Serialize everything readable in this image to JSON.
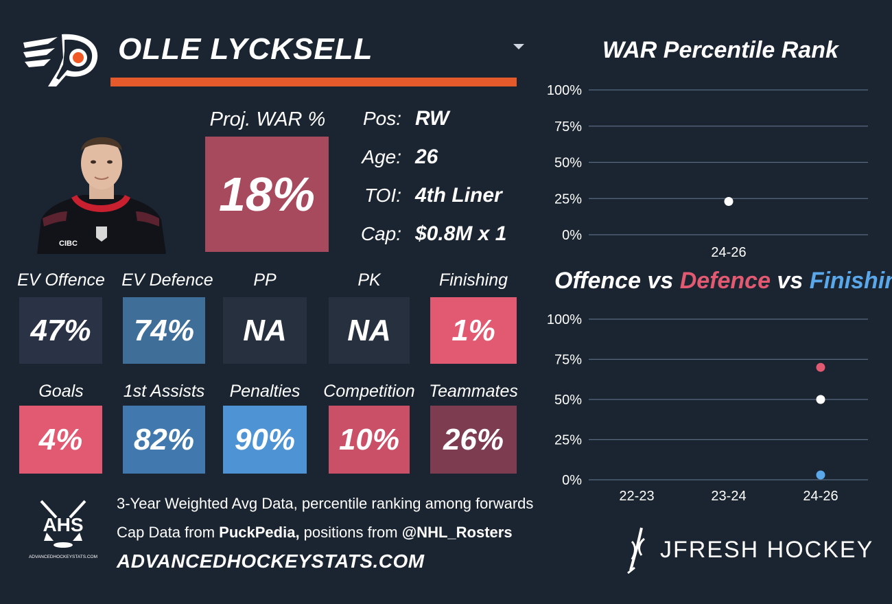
{
  "player": {
    "name": "OLLE LYCKSELL",
    "team_logo_icon": "flyers-logo-icon",
    "headshot": "player-headshot"
  },
  "projection": {
    "label": "Proj. WAR %",
    "value": "18%",
    "color": "#a84a5e"
  },
  "info": [
    {
      "label": "Pos:",
      "value": "RW"
    },
    {
      "label": "Age:",
      "value": "26"
    },
    {
      "label": "TOI:",
      "value": "4th Liner"
    },
    {
      "label": "Cap:",
      "value": "$0.8M x 1"
    }
  ],
  "stats_row1": [
    {
      "label": "EV Offence",
      "value": "47%",
      "color": "#2a3245"
    },
    {
      "label": "EV Defence",
      "value": "74%",
      "color": "#3f6e99"
    },
    {
      "label": "PP",
      "value": "NA",
      "color": "#26303e"
    },
    {
      "label": "PK",
      "value": "NA",
      "color": "#26303e"
    },
    {
      "label": "Finishing",
      "value": "1%",
      "color": "#e15a72"
    }
  ],
  "stats_row2": [
    {
      "label": "Goals",
      "value": "4%",
      "color": "#e15a72"
    },
    {
      "label": "1st Assists",
      "value": "82%",
      "color": "#4179ae"
    },
    {
      "label": "Penalties",
      "value": "90%",
      "color": "#4e93d3"
    },
    {
      "label": "Competition",
      "value": "10%",
      "color": "#c95066"
    },
    {
      "label": "Teammates",
      "value": "26%",
      "color": "#7d3c50"
    }
  ],
  "footer": {
    "line1": "3-Year Weighted Avg Data, percentile ranking among forwards",
    "line2_prefix": "Cap Data from ",
    "line2_bold1": "PuckPedia,",
    "line2_mid": " positions from ",
    "line2_bold2": "@NHL_Rosters",
    "site": "ADVANCEDHOCKEYSTATS.COM",
    "ahs_logo_text": "AHS",
    "ahs_logo_small": "ADVANCEDHOCKEYSTATS.COM",
    "brand": "JFRESH HOCKEY"
  },
  "chart_data": [
    {
      "type": "scatter",
      "title": "WAR Percentile Rank",
      "categories": [
        "24-26"
      ],
      "series": [
        {
          "values": [
            23
          ],
          "color": "#ffffff"
        }
      ],
      "yticks": [
        "100%",
        "75%",
        "50%",
        "25%",
        "0%"
      ],
      "ylim": [
        0,
        100
      ]
    },
    {
      "type": "scatter",
      "title_parts": [
        {
          "text": "Offence",
          "color": "#ffffff"
        },
        {
          "text": " vs ",
          "color": "#ffffff"
        },
        {
          "text": "Defence",
          "color": "#e15a72"
        },
        {
          "text": " vs ",
          "color": "#ffffff"
        },
        {
          "text": "Finishing",
          "color": "#5aa7ea"
        }
      ],
      "categories": [
        "22-23",
        "23-24",
        "24-26"
      ],
      "series": [
        {
          "values": [
            null,
            null,
            70
          ],
          "color": "#e15a72"
        },
        {
          "values": [
            null,
            null,
            50
          ],
          "color": "#ffffff"
        },
        {
          "values": [
            null,
            null,
            3
          ],
          "color": "#5aa7ea"
        }
      ],
      "yticks": [
        "100%",
        "75%",
        "50%",
        "25%",
        "0%"
      ],
      "ylim": [
        0,
        100
      ]
    }
  ]
}
